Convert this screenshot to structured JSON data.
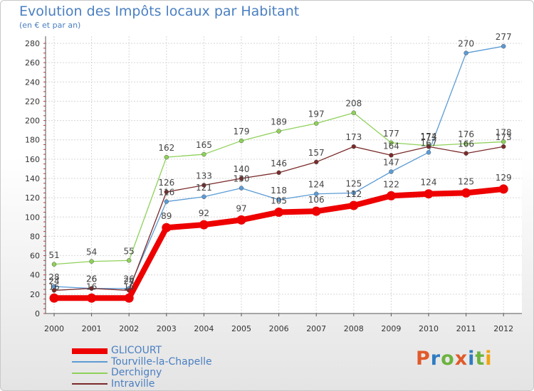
{
  "header": {
    "title": "Evolution des Impôts locaux par Habitant",
    "subtitle": "(en € et par an)"
  },
  "logo": {
    "text": "Proxiti",
    "letters": [
      "P",
      "r",
      "o",
      "x",
      "i",
      "t",
      "i"
    ],
    "colors": [
      "#e05a2b",
      "#2f7cc0",
      "#6db33f",
      "#e05a2b",
      "#2f7cc0",
      "#6db33f",
      "#f2a30f"
    ]
  },
  "chart_data": {
    "type": "line",
    "title": "Evolution des Impôts locaux par Habitant",
    "subtitle": "(en € et par an)",
    "xlabel": "",
    "ylabel": "",
    "categories": [
      "2000",
      "2001",
      "2002",
      "2003",
      "2004",
      "2005",
      "2006",
      "2007",
      "2008",
      "2009",
      "2010",
      "2011",
      "2012"
    ],
    "ylim": [
      0,
      280
    ],
    "yticks": [
      0,
      20,
      40,
      60,
      80,
      100,
      120,
      140,
      160,
      180,
      200,
      220,
      240,
      260,
      280
    ],
    "grid": true,
    "legend_position": "bottom-left",
    "series": [
      {
        "name": "GLICOURT",
        "color": "#ee0000",
        "values": [
          16,
          16,
          16,
          89,
          92,
          97,
          105,
          106,
          112,
          122,
          124,
          125,
          129
        ],
        "labels": [
          "16",
          "16",
          "16",
          "89",
          "92",
          "97",
          "105",
          "106",
          "112",
          "122",
          "124",
          "125",
          "129"
        ]
      },
      {
        "name": "Tourville-la-Chapelle",
        "color": "#5b9bd5",
        "values": [
          28,
          26,
          26,
          116,
          121,
          130,
          118,
          124,
          125,
          147,
          167,
          270,
          277
        ],
        "labels": [
          "28",
          "26",
          "26",
          "116",
          "121",
          "130",
          "118",
          "124",
          "125",
          "147",
          "167",
          "270",
          "277"
        ]
      },
      {
        "name": "Derchigny",
        "color": "#8fd15a",
        "values": [
          51,
          54,
          55,
          162,
          165,
          179,
          189,
          197,
          208,
          177,
          174,
          176,
          178
        ],
        "labels": [
          "51",
          "54",
          "55",
          "162",
          "165",
          "179",
          "189",
          "197",
          "208",
          "177",
          "174",
          "176",
          "178"
        ]
      },
      {
        "name": "Intraville",
        "color": "#7a2a2a",
        "values": [
          24,
          26,
          24,
          126,
          133,
          140,
          146,
          157,
          173,
          164,
          173,
          166,
          173
        ],
        "labels": [
          "24",
          "26",
          "24",
          "126",
          "133",
          "140",
          "146",
          "157",
          "173",
          "164",
          "173",
          "166",
          "173"
        ]
      }
    ]
  }
}
